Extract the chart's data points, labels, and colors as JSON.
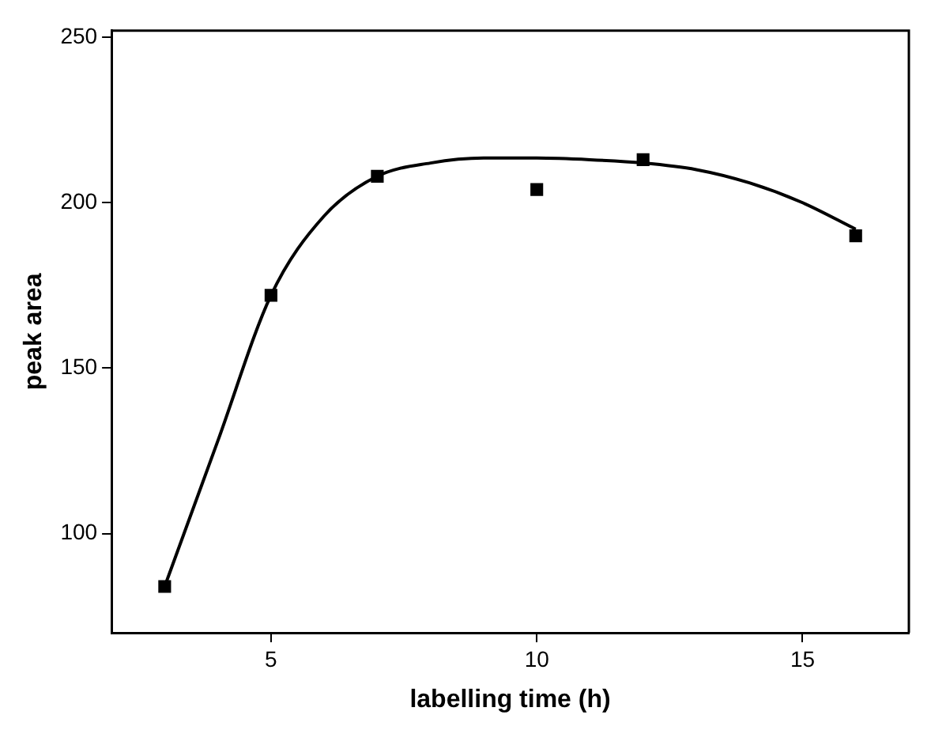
{
  "chart_data": {
    "type": "scatter",
    "xlabel": "labelling time (h)",
    "ylabel": "peak area",
    "xlim": [
      2,
      17
    ],
    "xticks": [
      5,
      10,
      15
    ],
    "ylim": [
      70,
      252
    ],
    "yticks": [
      100,
      150,
      200,
      250
    ],
    "grid": false,
    "legend": false,
    "series": [
      {
        "type": "scatter",
        "color": "#000000",
        "marker": "square",
        "x": [
          3,
          5,
          7,
          10,
          12,
          16
        ],
        "values": [
          84,
          172,
          208,
          204,
          213,
          190
        ]
      },
      {
        "type": "line",
        "color": "#000000",
        "marker": "none",
        "line_style": "solid",
        "x": [
          3,
          4,
          5,
          6,
          7,
          8,
          9,
          10,
          11,
          12,
          13,
          14,
          15,
          16
        ],
        "values": [
          84,
          128,
          172,
          196,
          208,
          212,
          213.5,
          213.5,
          213,
          212,
          210,
          206,
          200,
          192
        ]
      }
    ]
  }
}
